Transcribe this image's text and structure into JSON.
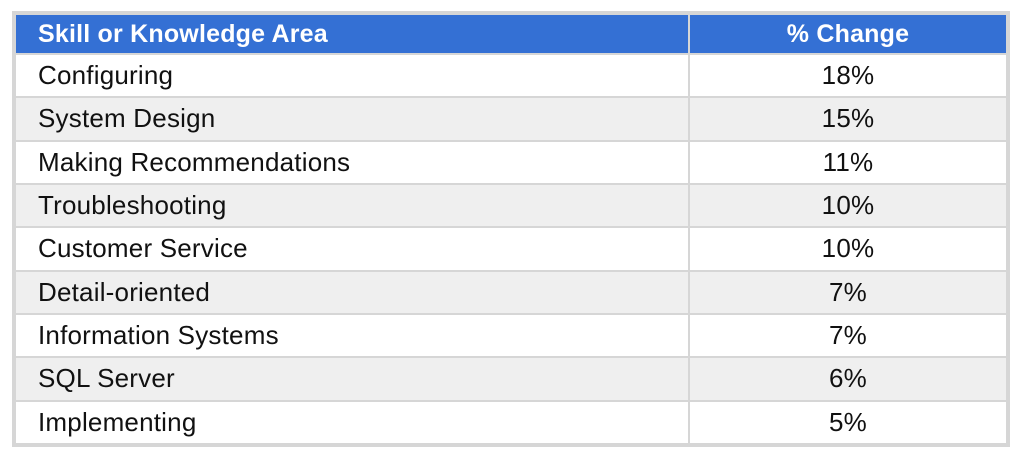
{
  "chart_data": {
    "type": "table",
    "columns": [
      "Skill or Knowledge Area",
      "% Change"
    ],
    "rows": [
      {
        "skill": "Configuring",
        "change": "18%"
      },
      {
        "skill": "System Design",
        "change": "15%"
      },
      {
        "skill": "Making Recommendations",
        "change": "11%"
      },
      {
        "skill": "Troubleshooting",
        "change": "10%"
      },
      {
        "skill": "Customer Service",
        "change": "10%"
      },
      {
        "skill": "Detail-oriented",
        "change": "7%"
      },
      {
        "skill": "Information Systems",
        "change": "7%"
      },
      {
        "skill": "SQL Server",
        "change": "6%"
      },
      {
        "skill": "Implementing",
        "change": "5%"
      }
    ]
  },
  "colors": {
    "header_bg": "#3470d4",
    "header_text": "#ffffff",
    "row_alt_bg": "#efefef",
    "border": "#d6d6d6"
  }
}
